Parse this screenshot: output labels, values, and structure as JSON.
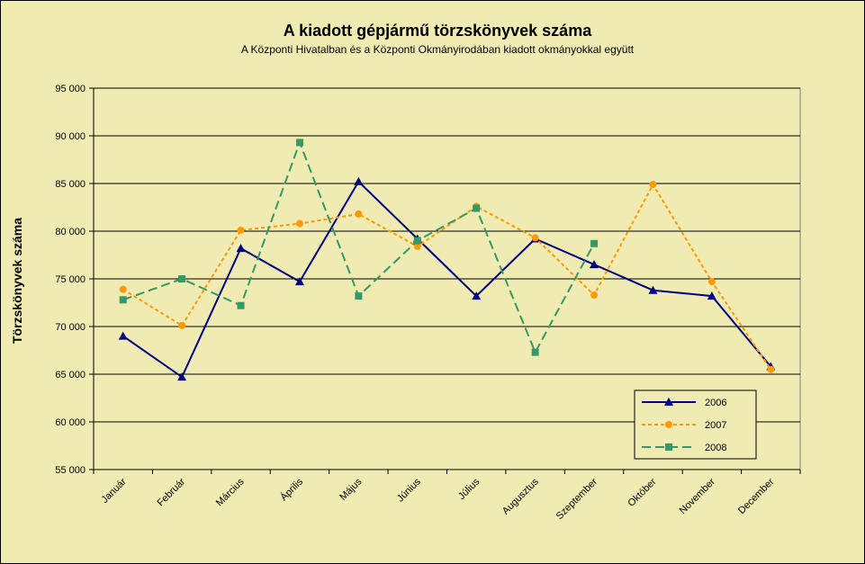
{
  "chart_data": {
    "type": "line",
    "title": "A  kiadott gépjármű  törzskönyvek száma",
    "subtitle": "A Központi Hivatalban és a Központi Okmányirodában kiadott okmányokkal együtt",
    "y_label": "Törzskönyvek száma",
    "categories": [
      "Január",
      "Február",
      "Március",
      "Április",
      "Május",
      "Június",
      "Július",
      "Augusztus",
      "Szeptember",
      "Október",
      "November",
      "December"
    ],
    "series": [
      {
        "name": "2006",
        "color": "#000080",
        "marker": "triangle",
        "dash": "solid",
        "values": [
          69000,
          64700,
          78200,
          74700,
          85200,
          79200,
          73200,
          79200,
          76500,
          73800,
          73200,
          65800
        ]
      },
      {
        "name": "2007",
        "color": "#ff9900",
        "marker": "circle",
        "dash": "short",
        "values": [
          73900,
          70100,
          80100,
          80800,
          81800,
          78400,
          82600,
          79300,
          73300,
          84900,
          74700,
          65500
        ]
      },
      {
        "name": "2008",
        "color": "#339966",
        "marker": "square",
        "dash": "long",
        "values": [
          72800,
          75000,
          72200,
          89300,
          73200,
          79000,
          82400,
          67300,
          78700,
          null,
          null,
          null
        ]
      }
    ],
    "ylim": [
      55000,
      95000
    ],
    "yticks": [
      {
        "value": 55000,
        "label": "55 000"
      },
      {
        "value": 60000,
        "label": "60 000"
      },
      {
        "value": 65000,
        "label": "65 000"
      },
      {
        "value": 70000,
        "label": "70 000"
      },
      {
        "value": 75000,
        "label": "75 000"
      },
      {
        "value": 80000,
        "label": "80 000"
      },
      {
        "value": 85000,
        "label": "85 000"
      },
      {
        "value": 90000,
        "label": "90 000"
      },
      {
        "value": 95000,
        "label": "95 000"
      }
    ],
    "grid": true,
    "legend": "lower right",
    "background": "#efebb2"
  }
}
